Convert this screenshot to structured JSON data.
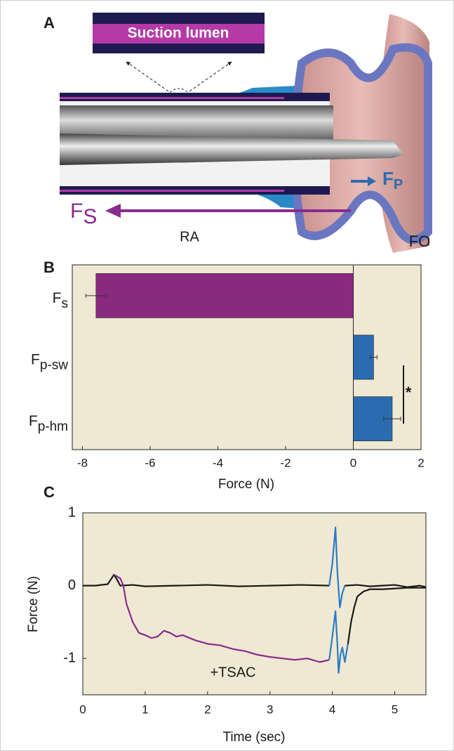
{
  "diagram": {
    "panel_label": "A",
    "inset_label": "Suction lumen",
    "suction_force": {
      "symbol": "F",
      "subscript": "S"
    },
    "puncture_force": {
      "symbol": "F",
      "subscript": "P"
    },
    "ra_label": "RA",
    "fo_label": "FO"
  },
  "chart_data": [
    {
      "type": "hbar",
      "panel_label": "B",
      "categories": [
        "Fs",
        "Fp-sw",
        "Fp-hm"
      ],
      "values": [
        -7.6,
        0.6,
        1.15
      ],
      "errors": [
        0.3,
        0.1,
        0.25
      ],
      "colors": [
        "#8a2a7f",
        "#2b6cb0",
        "#2b6cb0"
      ],
      "xlim": [
        -8.3,
        2
      ],
      "xticks": [
        -8,
        -6,
        -4,
        -2,
        0,
        2
      ],
      "x_label": "Force (N)",
      "annotation": "*"
    },
    {
      "type": "line",
      "panel_label": "C",
      "xlim": [
        0,
        5.5
      ],
      "ylim": [
        -1.5,
        1
      ],
      "xticks": [
        0,
        1,
        2,
        3,
        4,
        5
      ],
      "yticks": [
        -1,
        0,
        1
      ],
      "x_label": "Time (sec)",
      "y_label": "Force (N)",
      "annotation": "+TSAC",
      "series": [
        {
          "color": "#1a1a1a",
          "x": [
            0,
            0.2,
            0.4,
            0.5,
            0.55,
            0.6,
            0.8,
            1.0,
            1.5,
            2.0,
            2.5,
            3.0,
            3.5,
            3.95
          ],
          "values": [
            0,
            0,
            0.02,
            0.15,
            0.08,
            0,
            0.01,
            -0.01,
            0,
            0.01,
            -0.01,
            0,
            0.01,
            0
          ]
        },
        {
          "color": "#2b7bc4",
          "x": [
            3.95,
            4.0,
            4.05,
            4.08,
            4.12,
            4.16,
            4.2
          ],
          "values": [
            0,
            0.3,
            0.8,
            0.2,
            -0.3,
            -0.1,
            0
          ]
        },
        {
          "color": "#1a1a1a",
          "x": [
            4.2,
            4.4,
            4.6,
            4.8,
            5.0,
            5.2,
            5.4,
            5.5
          ],
          "values": [
            0,
            0.01,
            -0.01,
            0,
            0.01,
            -0.02,
            0,
            -0.02
          ]
        },
        {
          "color": "#8a2a8f",
          "x": [
            0.5,
            0.6,
            0.65,
            0.7,
            0.8,
            0.9,
            1.0,
            1.1,
            1.2,
            1.3,
            1.4,
            1.5,
            1.6,
            1.8,
            2.0,
            2.2,
            2.4,
            2.6,
            2.8,
            3.0,
            3.2,
            3.4,
            3.6,
            3.8,
            3.95
          ],
          "values": [
            0.15,
            0.1,
            0.0,
            -0.25,
            -0.5,
            -0.65,
            -0.68,
            -0.72,
            -0.7,
            -0.62,
            -0.65,
            -0.7,
            -0.68,
            -0.75,
            -0.8,
            -0.82,
            -0.87,
            -0.9,
            -0.95,
            -0.98,
            -1.0,
            -1.02,
            -1.0,
            -1.05,
            -1.02
          ]
        },
        {
          "color": "#2b7bc4",
          "x": [
            3.95,
            4.0,
            4.05,
            4.08,
            4.1,
            4.13,
            4.16,
            4.2,
            4.25
          ],
          "values": [
            -1.02,
            -0.7,
            -0.35,
            -0.8,
            -1.2,
            -0.95,
            -0.85,
            -1.05,
            -0.8
          ]
        },
        {
          "color": "#1a1a1a",
          "x": [
            4.25,
            4.3,
            4.35,
            4.4,
            4.5,
            4.6,
            4.8,
            5.0,
            5.2,
            5.5
          ],
          "values": [
            -0.8,
            -0.5,
            -0.3,
            -0.15,
            -0.08,
            -0.05,
            -0.05,
            -0.04,
            -0.03,
            -0.03
          ]
        }
      ]
    }
  ]
}
